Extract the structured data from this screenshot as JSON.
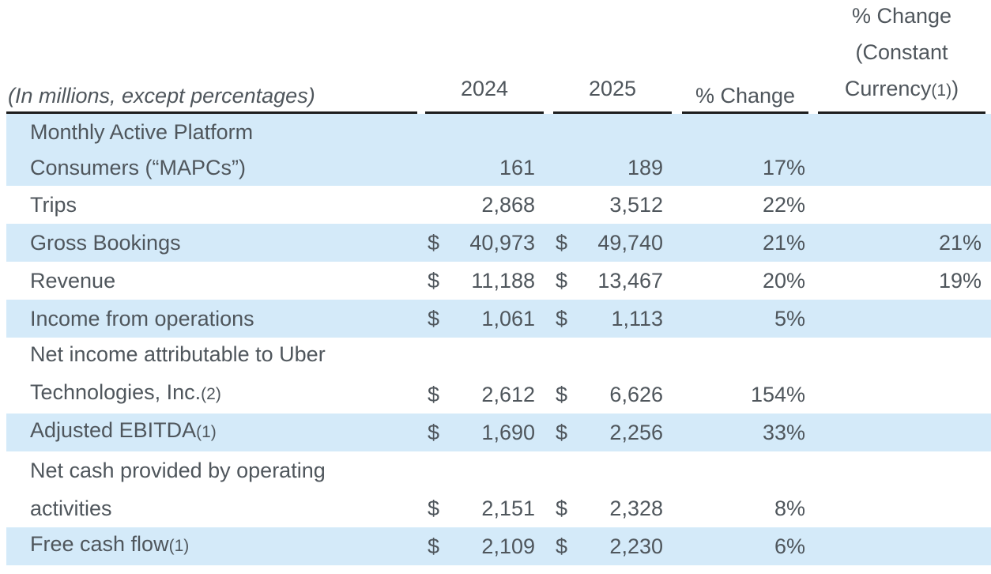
{
  "colors": {
    "stripe": "#d4eaf9",
    "text": "#4f565c",
    "rule": "#1d1d1d"
  },
  "currency_symbol": "$",
  "header": {
    "caption": "(In millions, except percentages)",
    "col_2024": "2024",
    "col_2025": "2025",
    "col_pct_change": "% Change",
    "col_cc_line1": "% Change",
    "col_cc_line2": "(Constant",
    "col_cc_line3_text": "Currency",
    "col_cc_footnote": "(1)",
    "col_cc_line3_close": ")"
  },
  "rows": [
    {
      "label_lines": [
        "Monthly Active Platform",
        "Consumers (“MAPCs”)"
      ],
      "footnote": "",
      "currency": false,
      "y2024": "161",
      "y2025": "189",
      "pct": "17%",
      "cc": "",
      "shaded": true,
      "size": "tall1"
    },
    {
      "label_lines": [
        "Trips"
      ],
      "footnote": "",
      "currency": false,
      "y2024": "2,868",
      "y2025": "3,512",
      "pct": "22%",
      "cc": "",
      "shaded": false,
      "size": "single"
    },
    {
      "label_lines": [
        "Gross Bookings"
      ],
      "footnote": "",
      "currency": true,
      "y2024": "40,973",
      "y2025": "49,740",
      "pct": "21%",
      "cc": "21%",
      "shaded": true,
      "size": "single"
    },
    {
      "label_lines": [
        "Revenue"
      ],
      "footnote": "",
      "currency": true,
      "y2024": "11,188",
      "y2025": "13,467",
      "pct": "20%",
      "cc": "19%",
      "shaded": false,
      "size": "single"
    },
    {
      "label_lines": [
        "Income from operations"
      ],
      "footnote": "",
      "currency": true,
      "y2024": "1,061",
      "y2025": "1,113",
      "pct": "5%",
      "cc": "",
      "shaded": true,
      "size": "single"
    },
    {
      "label_lines": [
        "Net income attributable to Uber",
        "Technologies, Inc."
      ],
      "footnote": "(2)",
      "currency": true,
      "y2024": "2,612",
      "y2025": "6,626",
      "pct": "154%",
      "cc": "",
      "shaded": false,
      "size": "tall"
    },
    {
      "label_lines": [
        "Adjusted EBITDA"
      ],
      "footnote": "(1)",
      "currency": true,
      "y2024": "1,690",
      "y2025": "2,256",
      "pct": "33%",
      "cc": "",
      "shaded": true,
      "size": "single"
    },
    {
      "label_lines": [
        "Net cash provided by operating",
        "activities"
      ],
      "footnote": "",
      "currency": true,
      "y2024": "2,151",
      "y2025": "2,328",
      "pct": "8%",
      "cc": "",
      "shaded": false,
      "size": "tall"
    },
    {
      "label_lines": [
        "Free cash flow"
      ],
      "footnote": "(1)",
      "currency": true,
      "y2024": "2,109",
      "y2025": "2,230",
      "pct": "6%",
      "cc": "",
      "shaded": true,
      "size": "single"
    }
  ]
}
